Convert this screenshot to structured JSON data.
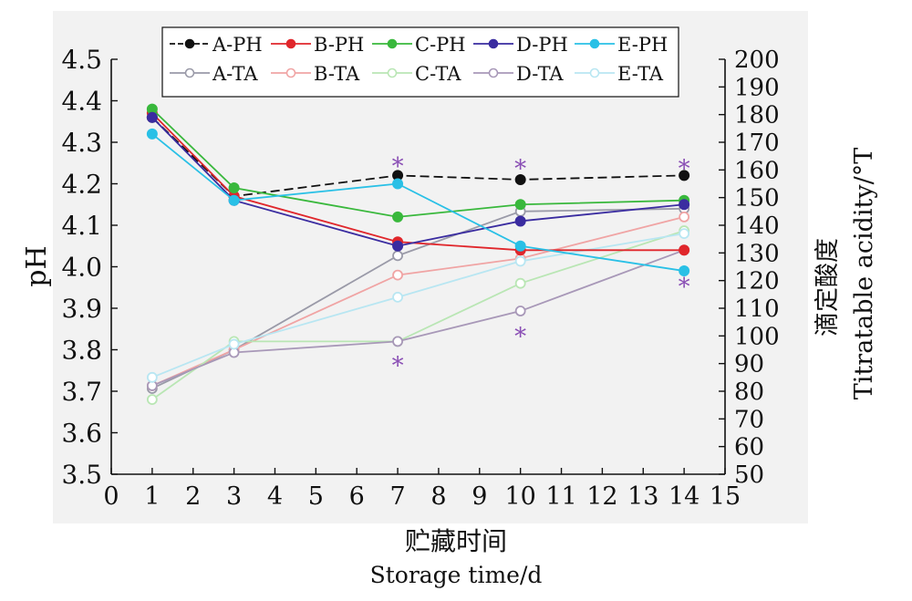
{
  "chart_data": {
    "type": "line",
    "x": [
      1,
      3,
      7,
      10,
      14
    ],
    "xticks": [
      0,
      1,
      2,
      3,
      4,
      5,
      6,
      7,
      8,
      9,
      10,
      11,
      12,
      13,
      14,
      15
    ],
    "xlim": [
      0,
      15
    ],
    "xlabel_cn": "贮藏时间",
    "xlabel_en": "Storage  time/d",
    "ylabel_left": "pH",
    "ylim_left": [
      3.5,
      4.5
    ],
    "yticks_left": [
      "3.5",
      "3.6",
      "3.7",
      "3.8",
      "3.9",
      "4.0",
      "4.1",
      "4.2",
      "4.3",
      "4.4",
      "4.5"
    ],
    "ylabel_right_cn": "滴定酸度",
    "ylabel_right_en": "Titratable  acidity/°T",
    "ylim_right": [
      50,
      200
    ],
    "yticks_right": [
      "50",
      "60",
      "70",
      "80",
      "90",
      "100",
      "110",
      "120",
      "130",
      "140",
      "150",
      "160",
      "170",
      "180",
      "190",
      "200"
    ],
    "legend_position": "top",
    "pH_series": [
      {
        "name": "A-PH",
        "color": "#111111",
        "dash": "10,5",
        "values": [
          4.36,
          4.17,
          4.22,
          4.21,
          4.22
        ]
      },
      {
        "name": "B-PH",
        "color": "#e0262b",
        "dash": "",
        "values": [
          4.37,
          4.17,
          4.06,
          4.04,
          4.04
        ]
      },
      {
        "name": "C-PH",
        "color": "#39b83c",
        "dash": "",
        "values": [
          4.38,
          4.19,
          4.12,
          4.15,
          4.16
        ]
      },
      {
        "name": "D-PH",
        "color": "#3a2ca0",
        "dash": "",
        "values": [
          4.36,
          4.16,
          4.05,
          4.11,
          4.15
        ]
      },
      {
        "name": "E-PH",
        "color": "#29c0e6",
        "dash": "",
        "values": [
          4.32,
          4.16,
          4.2,
          4.05,
          3.99
        ]
      }
    ],
    "ta_series": [
      {
        "name": "A-TA",
        "color": "#9a9aa8",
        "values": [
          81,
          95,
          129,
          145,
          146
        ]
      },
      {
        "name": "B-TA",
        "color": "#f0a4a4",
        "values": [
          82,
          95,
          122,
          128,
          143
        ]
      },
      {
        "name": "C-TA",
        "color": "#b9e6b4",
        "values": [
          77,
          98,
          98,
          119,
          138
        ]
      },
      {
        "name": "D-TA",
        "color": "#a898b8",
        "values": [
          82,
          94,
          98,
          109,
          131
        ]
      },
      {
        "name": "E-TA",
        "color": "#b8e6f2",
        "values": [
          85,
          97,
          114,
          127,
          137
        ]
      }
    ],
    "significance_marks": [
      {
        "symbol": "*",
        "x": 7,
        "y_ph": 4.245
      },
      {
        "symbol": "*",
        "x": 7,
        "y_ph": 3.765
      },
      {
        "symbol": "*",
        "x": 10,
        "y_ph": 4.24
      },
      {
        "symbol": "*",
        "x": 10,
        "y_ph": 3.835
      },
      {
        "symbol": "*",
        "x": 14,
        "y_ph": 4.24
      },
      {
        "symbol": "*",
        "x": 14,
        "y_ph": 3.955
      }
    ],
    "significance_color": "#8a4fb5"
  }
}
